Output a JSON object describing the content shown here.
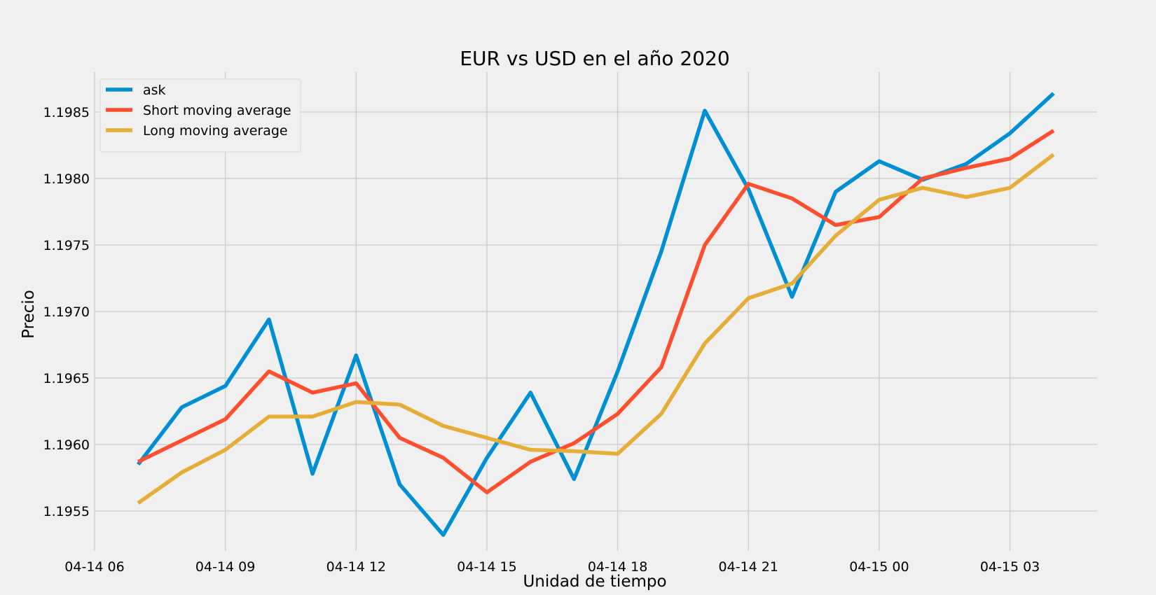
{
  "chart_data": {
    "type": "line",
    "title": "EUR vs USD en el año 2020",
    "xlabel": "Unidad de tiempo",
    "ylabel": "Precio",
    "x": [
      7,
      8,
      9,
      10,
      11,
      12,
      13,
      14,
      15,
      16,
      17,
      18,
      19,
      20,
      21,
      22,
      23,
      24,
      25,
      26,
      27,
      28
    ],
    "xlim": [
      6,
      29
    ],
    "ylim": [
      1.1952,
      1.1988
    ],
    "x_ticks": [
      6,
      9,
      12,
      15,
      18,
      21,
      24,
      27
    ],
    "x_tick_labels": [
      "04-14 06",
      "04-14 09",
      "04-14 12",
      "04-14 15",
      "04-14 18",
      "04-14 21",
      "04-15 00",
      "04-15 03"
    ],
    "y_ticks": [
      1.1955,
      1.196,
      1.1965,
      1.197,
      1.1975,
      1.198,
      1.1985
    ],
    "y_tick_labels": [
      "1.1955",
      "1.1960",
      "1.1965",
      "1.1970",
      "1.1975",
      "1.1980",
      "1.1985"
    ],
    "grid": true,
    "legend_position": "top-left",
    "series": [
      {
        "name": "ask",
        "color": "#008fd5",
        "values": [
          1.19585,
          1.19628,
          1.19644,
          1.19694,
          1.19578,
          1.19667,
          1.1957,
          1.19532,
          1.1959,
          1.19639,
          1.19574,
          1.19655,
          1.19745,
          1.19851,
          1.19792,
          1.19711,
          1.1979,
          1.19813,
          1.19799,
          1.19811,
          1.19834,
          1.19864
        ]
      },
      {
        "name": "Short moving average",
        "color": "#fc4f30",
        "values": [
          1.19587,
          1.19603,
          1.19619,
          1.19655,
          1.19639,
          1.19646,
          1.19605,
          1.1959,
          1.19564,
          1.19587,
          1.19601,
          1.19623,
          1.19658,
          1.1975,
          1.19796,
          1.19785,
          1.19765,
          1.19771,
          1.198,
          1.19808,
          1.19815,
          1.19836
        ]
      },
      {
        "name": "Long moving average",
        "color": "#e5ae38",
        "values": [
          1.19556,
          1.19579,
          1.19596,
          1.19621,
          1.19621,
          1.19632,
          1.1963,
          1.19614,
          1.19605,
          1.19596,
          1.19595,
          1.19593,
          1.19623,
          1.19676,
          1.1971,
          1.19721,
          1.19757,
          1.19784,
          1.19793,
          1.19786,
          1.19793,
          1.19818
        ]
      }
    ]
  }
}
